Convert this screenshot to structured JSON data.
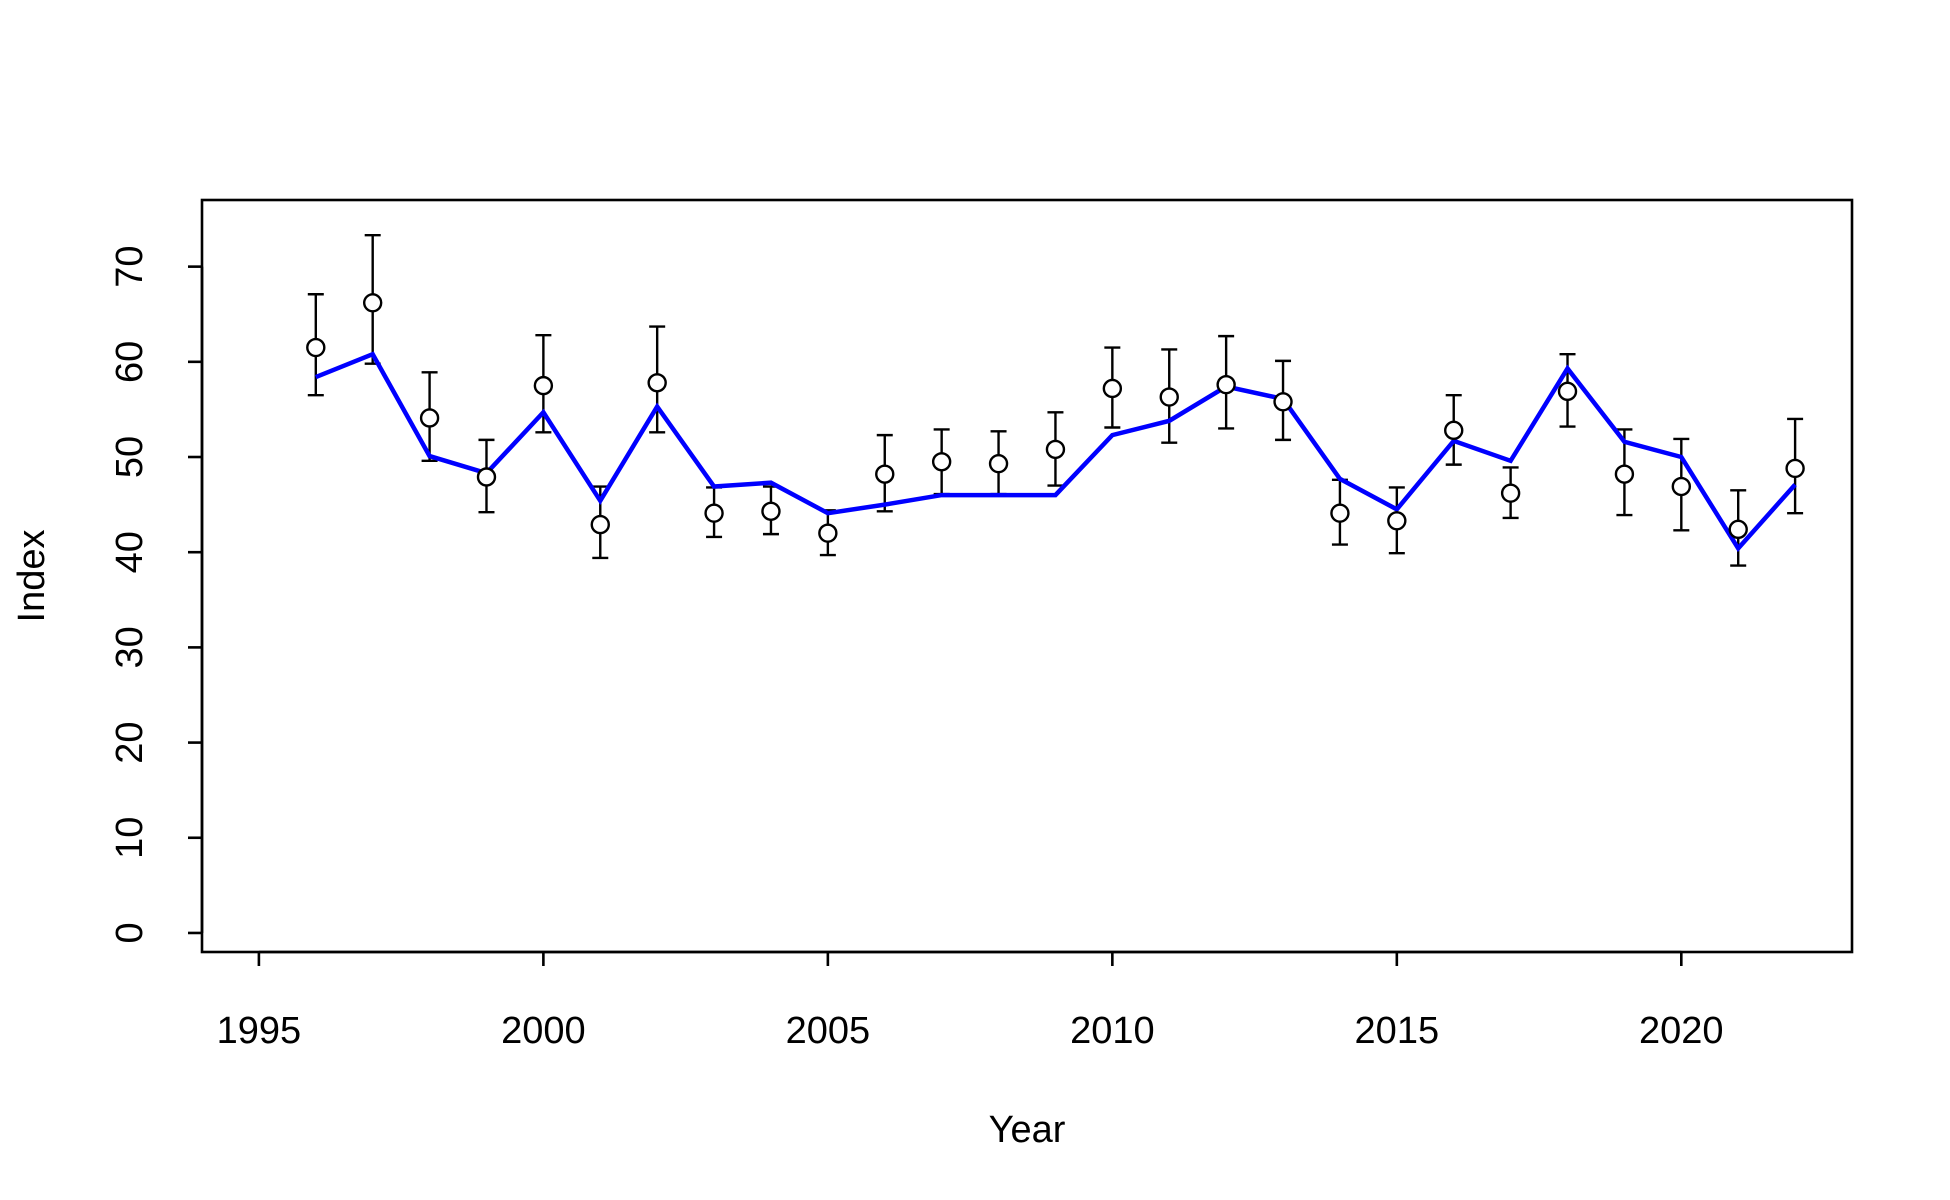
{
  "chart_data": {
    "type": "line",
    "title": "",
    "xlabel": "Year",
    "ylabel": "Index",
    "xlim": [
      1995,
      2023
    ],
    "ylim": [
      0,
      77
    ],
    "x_ticks": [
      1995,
      2000,
      2005,
      2010,
      2015,
      2020
    ],
    "y_ticks": [
      0,
      10,
      20,
      30,
      40,
      50,
      60,
      70
    ],
    "grid": false,
    "legend": "none",
    "observed": {
      "x": [
        1996,
        1997,
        1998,
        1999,
        2000,
        2001,
        2002,
        2003,
        2004,
        2005,
        2006,
        2007,
        2008,
        2009,
        2010,
        2011,
        2012,
        2013,
        2014,
        2015,
        2016,
        2017,
        2018,
        2019,
        2020,
        2021,
        2022
      ],
      "y": [
        61.5,
        66.2,
        54.1,
        47.9,
        57.5,
        42.9,
        57.8,
        44.1,
        44.3,
        42.0,
        48.2,
        49.5,
        49.3,
        50.8,
        57.2,
        56.3,
        57.6,
        55.8,
        44.1,
        43.3,
        52.8,
        46.2,
        56.9,
        48.2,
        46.9,
        42.4,
        48.8
      ],
      "lower": [
        56.5,
        59.8,
        49.6,
        44.2,
        52.6,
        39.4,
        52.6,
        41.6,
        41.9,
        39.7,
        44.3,
        46.1,
        46.1,
        47.0,
        53.1,
        51.5,
        53.0,
        51.8,
        40.8,
        39.9,
        49.2,
        43.6,
        53.2,
        43.9,
        42.3,
        38.6,
        44.1
      ],
      "upper": [
        67.1,
        73.3,
        58.9,
        51.8,
        62.8,
        46.9,
        63.7,
        46.8,
        46.9,
        44.4,
        52.3,
        52.9,
        52.7,
        54.7,
        61.5,
        61.3,
        62.7,
        60.1,
        47.6,
        46.8,
        56.5,
        48.9,
        60.8,
        52.9,
        51.9,
        46.5,
        54.0
      ],
      "marker": "open-circle",
      "errorbar_color": "#000000"
    },
    "series": [
      {
        "x": [
          1996,
          1997,
          1998,
          1999,
          2000,
          2001,
          2002,
          2003,
          2004,
          2005,
          2006,
          2007,
          2008,
          2009,
          2010,
          2011,
          2012,
          2013,
          2014,
          2015,
          2016,
          2017,
          2018,
          2019,
          2020,
          2021,
          2022
        ],
        "values": [
          58.4,
          60.8,
          50.1,
          48.3,
          54.7,
          45.4,
          55.3,
          46.9,
          47.3,
          44.1,
          45.0,
          46.0,
          46.0,
          46.0,
          52.3,
          53.8,
          57.4,
          56.1,
          47.7,
          44.5,
          51.7,
          49.6,
          59.3,
          51.6,
          50.0,
          40.4,
          47.1
        ],
        "color": "#0000ff"
      }
    ]
  }
}
